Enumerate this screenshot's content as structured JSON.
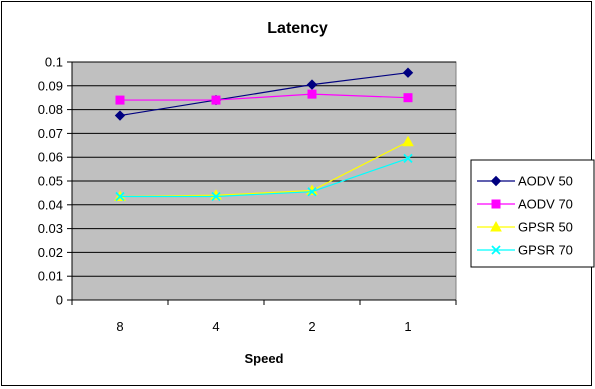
{
  "chart_data": {
    "type": "line",
    "title": "Latency",
    "xlabel": "Speed",
    "ylabel": "",
    "categories": [
      "8",
      "4",
      "2",
      "1"
    ],
    "ylim": [
      0,
      0.1
    ],
    "ytick_step": 0.01,
    "y_tick_labels": [
      "0",
      "0.01",
      "0.02",
      "0.03",
      "0.04",
      "0.05",
      "0.06",
      "0.07",
      "0.08",
      "0.09",
      "0.1"
    ],
    "grid": "horizontal",
    "plot_background": "#c0c0c0",
    "legend_position": "right",
    "series": [
      {
        "name": "AODV 50",
        "values": [
          0.0775,
          0.084,
          0.0905,
          0.0955
        ],
        "color": "#000080",
        "marker": "diamond"
      },
      {
        "name": "AODV 70",
        "values": [
          0.084,
          0.084,
          0.0865,
          0.085
        ],
        "color": "#ff00ff",
        "marker": "square"
      },
      {
        "name": "GPSR 50",
        "values": [
          0.0435,
          0.044,
          0.046,
          0.0665
        ],
        "color": "#ffff00",
        "marker": "triangle"
      },
      {
        "name": "GPSR 70",
        "values": [
          0.0435,
          0.0435,
          0.0455,
          0.0595
        ],
        "color": "#00ffff",
        "marker": "x"
      }
    ]
  }
}
